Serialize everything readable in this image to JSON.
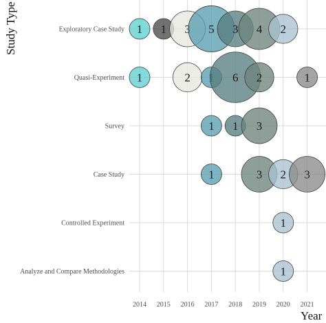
{
  "chart_data": {
    "type": "scatter",
    "xlabel": "Year",
    "ylabel": "Study Type",
    "x": [
      "2014",
      "2015",
      "2016",
      "2017",
      "2018",
      "2019",
      "2020",
      "2021"
    ],
    "categories": [
      "Exploratory Case Study",
      "Quasi-Experiment",
      "Survey",
      "Case Study",
      "Controlled Experiment",
      "Analyze and Compare Methodologies"
    ],
    "grid": true,
    "legend": "none",
    "points": [
      {
        "x": "2014",
        "y": "Exploratory Case Study",
        "value": 1,
        "color": "#5fcfcf"
      },
      {
        "x": "2015",
        "y": "Exploratory Case Study",
        "value": 1,
        "color": "#4a4a4a"
      },
      {
        "x": "2016",
        "y": "Exploratory Case Study",
        "value": 3,
        "color": "#e8e8e2"
      },
      {
        "x": "2017",
        "y": "Exploratory Case Study",
        "value": 5,
        "color": "#5a9db0"
      },
      {
        "x": "2018",
        "y": "Exploratory Case Study",
        "value": 3,
        "color": "#587f82"
      },
      {
        "x": "2019",
        "y": "Exploratory Case Study",
        "value": 4,
        "color": "#6e847e"
      },
      {
        "x": "2020",
        "y": "Exploratory Case Study",
        "value": 2,
        "color": "#a9c2cf"
      },
      {
        "x": "2014",
        "y": "Quasi-Experiment",
        "value": 1,
        "color": "#5fcfcf"
      },
      {
        "x": "2016",
        "y": "Quasi-Experiment",
        "value": 2,
        "color": "#e8e8e2"
      },
      {
        "x": "2017",
        "y": "Quasi-Experiment",
        "value": 1,
        "color": "#5a9db0"
      },
      {
        "x": "2018",
        "y": "Quasi-Experiment",
        "value": 6,
        "color": "#587f82"
      },
      {
        "x": "2019",
        "y": "Quasi-Experiment",
        "value": 2,
        "color": "#6e847e"
      },
      {
        "x": "2021",
        "y": "Quasi-Experiment",
        "value": 1,
        "color": "#8a8a8a"
      },
      {
        "x": "2017",
        "y": "Survey",
        "value": 1,
        "color": "#5a9db0"
      },
      {
        "x": "2018",
        "y": "Survey",
        "value": 1,
        "color": "#587f82"
      },
      {
        "x": "2019",
        "y": "Survey",
        "value": 3,
        "color": "#6e847e"
      },
      {
        "x": "2017",
        "y": "Case Study",
        "value": 1,
        "color": "#5a9db0"
      },
      {
        "x": "2019",
        "y": "Case Study",
        "value": 3,
        "color": "#6e847e"
      },
      {
        "x": "2020",
        "y": "Case Study",
        "value": 2,
        "color": "#a9c2cf"
      },
      {
        "x": "2021",
        "y": "Case Study",
        "value": 3,
        "color": "#8a8a8a"
      },
      {
        "x": "2020",
        "y": "Controlled Experiment",
        "value": 1,
        "color": "#a9c2cf"
      },
      {
        "x": "2020",
        "y": "Analyze and Compare Methodologies",
        "value": 1,
        "color": "#a9c2cf"
      }
    ]
  }
}
